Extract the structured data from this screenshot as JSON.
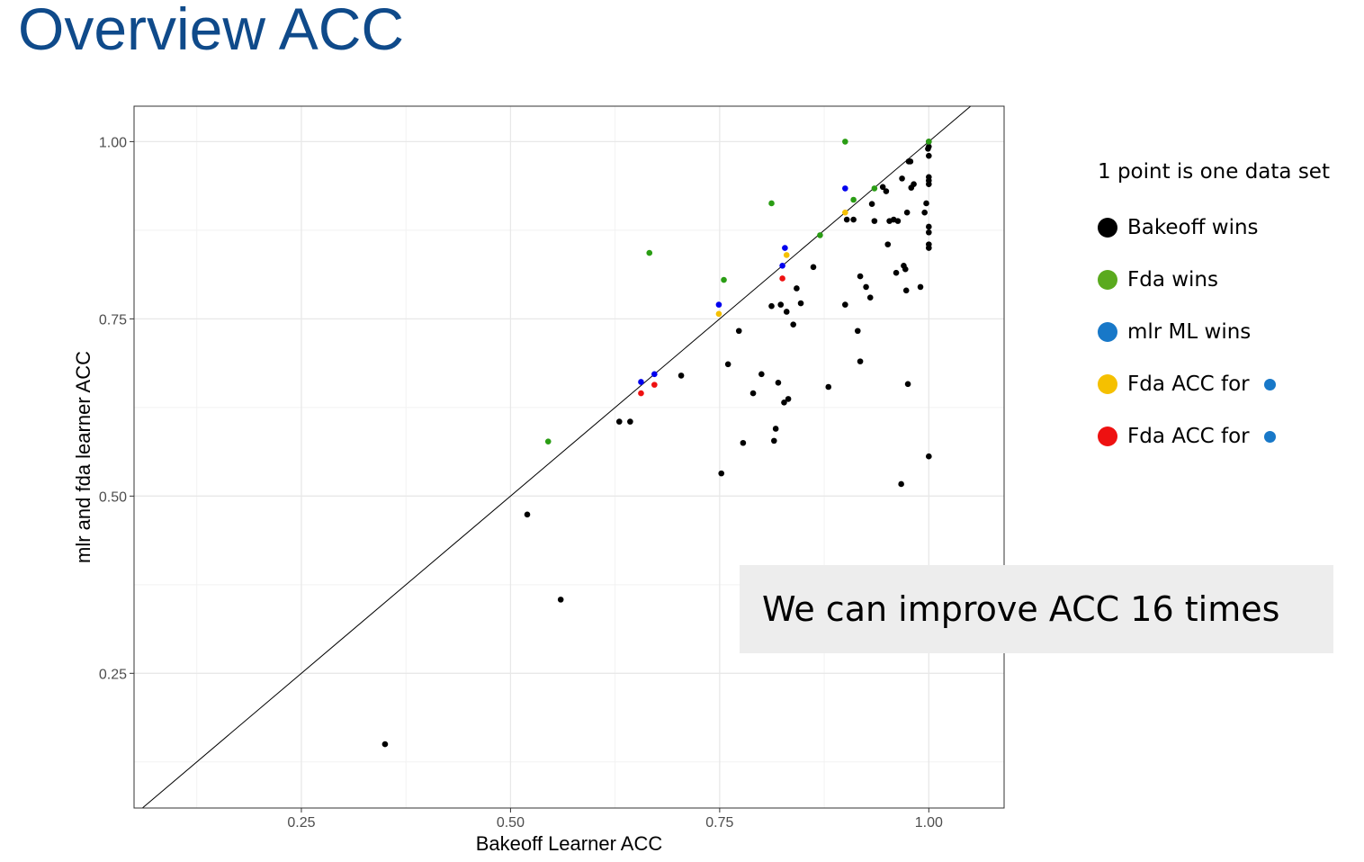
{
  "page": {
    "title": "Overview ACC",
    "title_color": "#0f4a8a"
  },
  "legend": {
    "title": "1 point is one data set",
    "items": [
      {
        "label": "Bakeoff wins",
        "color": "#000000",
        "extra_color": null
      },
      {
        "label": "Fda wins",
        "color": "#5aaa1e",
        "extra_color": null
      },
      {
        "label": "mlr ML wins",
        "color": "#1878c8",
        "extra_color": null
      },
      {
        "label": "Fda ACC for",
        "color": "#f5c000",
        "extra_color": "#1878c8"
      },
      {
        "label": "Fda ACC for",
        "color": "#ee1111",
        "extra_color": "#1878c8"
      }
    ]
  },
  "callout": {
    "text": "We can improve ACC 16 times"
  },
  "chart_data": {
    "type": "scatter",
    "title": "",
    "xlabel": "Bakeoff Learner ACC",
    "ylabel": "mlr and fda learner ACC",
    "xlim": [
      0.05,
      1.09
    ],
    "ylim": [
      0.06,
      1.05
    ],
    "xticks": [
      0.25,
      0.5,
      0.75,
      1.0
    ],
    "xtick_labels": [
      "0.25",
      "0.50",
      "0.75",
      "1.00"
    ],
    "yticks": [
      0.25,
      0.5,
      0.75,
      1.0
    ],
    "ytick_labels": [
      "0.25",
      "0.50",
      "0.75",
      "1.00"
    ],
    "grid": true,
    "reference_line": "y = x",
    "series": [
      {
        "color": "#000000",
        "points": [
          [
            0.35,
            0.15
          ],
          [
            0.52,
            0.474
          ],
          [
            0.56,
            0.354
          ],
          [
            0.63,
            0.605
          ],
          [
            0.643,
            0.605
          ],
          [
            0.704,
            0.67
          ],
          [
            0.752,
            0.532
          ],
          [
            0.76,
            0.686
          ],
          [
            0.773,
            0.733
          ],
          [
            0.778,
            0.575
          ],
          [
            0.79,
            0.645
          ],
          [
            0.8,
            0.672
          ],
          [
            0.812,
            0.768
          ],
          [
            0.815,
            0.578
          ],
          [
            0.817,
            0.595
          ],
          [
            0.82,
            0.66
          ],
          [
            0.823,
            0.77
          ],
          [
            0.827,
            0.632
          ],
          [
            0.832,
            0.637
          ],
          [
            0.83,
            0.76
          ],
          [
            0.838,
            0.742
          ],
          [
            0.842,
            0.793
          ],
          [
            0.847,
            0.772
          ],
          [
            0.862,
            0.823
          ],
          [
            0.88,
            0.654
          ],
          [
            0.9,
            0.77
          ],
          [
            0.902,
            0.89
          ],
          [
            0.91,
            0.89
          ],
          [
            0.915,
            0.733
          ],
          [
            0.918,
            0.69
          ],
          [
            0.918,
            0.81
          ],
          [
            0.925,
            0.795
          ],
          [
            0.93,
            0.78
          ],
          [
            0.932,
            0.912
          ],
          [
            0.935,
            0.888
          ],
          [
            0.945,
            0.936
          ],
          [
            0.949,
            0.93
          ],
          [
            0.951,
            0.855
          ],
          [
            0.953,
            0.888
          ],
          [
            0.958,
            0.89
          ],
          [
            0.961,
            0.815
          ],
          [
            0.963,
            0.888
          ],
          [
            0.968,
            0.948
          ],
          [
            0.97,
            0.825
          ],
          [
            0.972,
            0.82
          ],
          [
            0.973,
            0.79
          ],
          [
            0.974,
            0.9
          ],
          [
            0.975,
            0.658
          ],
          [
            0.976,
            0.972
          ],
          [
            0.978,
            0.972
          ],
          [
            0.979,
            0.935
          ],
          [
            0.982,
            0.94
          ],
          [
            0.99,
            0.795
          ],
          [
            0.995,
            0.9
          ],
          [
            0.997,
            0.913
          ],
          [
            0.967,
            0.517
          ],
          [
            0.999,
            0.99
          ],
          [
            1.0,
            1.0
          ],
          [
            1.0,
            0.993
          ],
          [
            1.0,
            0.98
          ],
          [
            1.0,
            0.95
          ],
          [
            1.0,
            0.945
          ],
          [
            1.0,
            0.94
          ],
          [
            1.0,
            0.88
          ],
          [
            1.0,
            0.872
          ],
          [
            1.0,
            0.855
          ],
          [
            1.0,
            0.85
          ],
          [
            1.0,
            0.556
          ]
        ]
      },
      {
        "color": "#2a9d14",
        "points": [
          [
            0.545,
            0.577
          ],
          [
            0.666,
            0.843
          ],
          [
            0.755,
            0.805
          ],
          [
            0.812,
            0.913
          ],
          [
            0.87,
            0.868
          ],
          [
            0.9,
            1.0
          ],
          [
            0.91,
            0.918
          ],
          [
            0.935,
            0.934
          ],
          [
            1.0,
            1.0
          ]
        ]
      },
      {
        "color": "#0000ee",
        "points": [
          [
            0.656,
            0.661
          ],
          [
            0.672,
            0.672
          ],
          [
            0.749,
            0.77
          ],
          [
            0.825,
            0.825
          ],
          [
            0.828,
            0.85
          ],
          [
            0.9,
            0.934
          ]
        ]
      },
      {
        "color": "#f5c000",
        "points": [
          [
            0.749,
            0.757
          ],
          [
            0.83,
            0.84
          ],
          [
            0.9,
            0.9
          ]
        ]
      },
      {
        "color": "#ee1111",
        "points": [
          [
            0.656,
            0.645
          ],
          [
            0.672,
            0.657
          ],
          [
            0.825,
            0.807
          ]
        ]
      }
    ]
  }
}
